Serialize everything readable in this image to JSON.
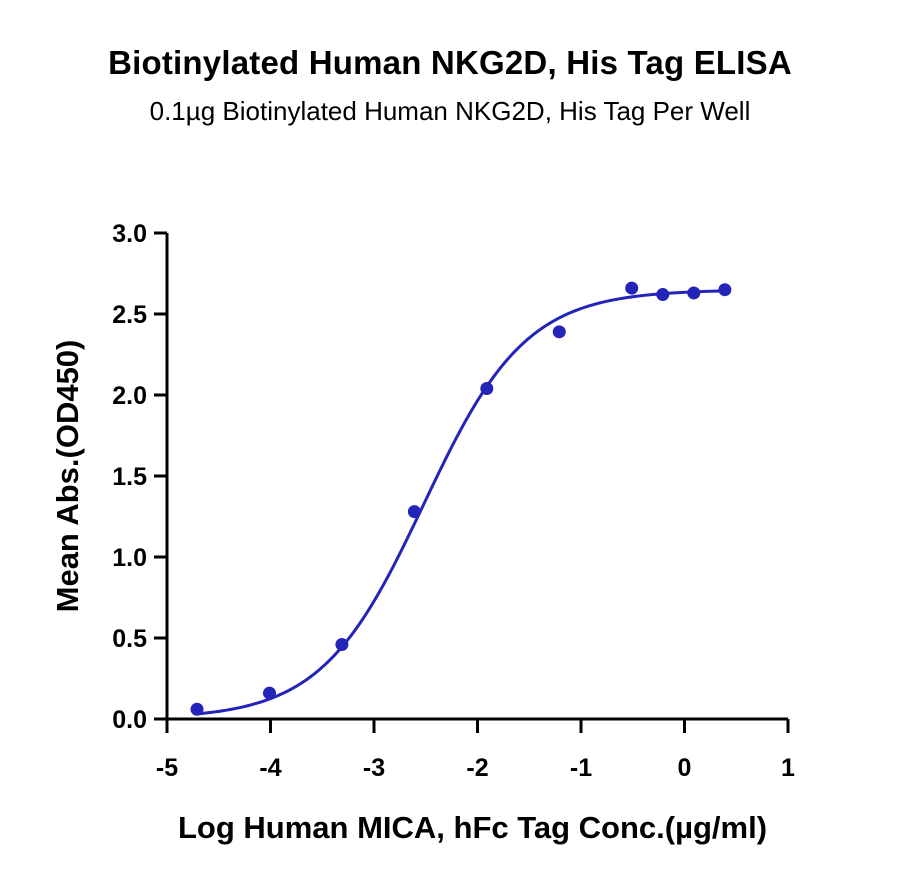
{
  "chart_data": {
    "type": "scatter",
    "title": "Biotinylated Human NKG2D, His Tag ELISA",
    "subtitle": "0.1µg Biotinylated Human NKG2D, His Tag Per Well",
    "xlabel": "Log Human MICA, hFc Tag Conc.(µg/ml)",
    "ylabel": "Mean Abs.(OD450)",
    "xlim": [
      -5,
      1
    ],
    "ylim": [
      0,
      3.0
    ],
    "x_ticks": [
      -5,
      -4,
      -3,
      -2,
      -1,
      0,
      1
    ],
    "x_tick_labels": [
      "-5",
      "-4",
      "-3",
      "-2",
      "-1",
      "0",
      "1"
    ],
    "y_ticks": [
      0,
      0.5,
      1.0,
      1.5,
      2.0,
      2.5,
      3.0
    ],
    "y_tick_labels": [
      "0.0",
      "0.5",
      "1.0",
      "1.5",
      "2.0",
      "2.5",
      "3.0"
    ],
    "grid": false,
    "series": [
      {
        "points": [
          {
            "x": -4.71,
            "y": 0.06
          },
          {
            "x": -4.01,
            "y": 0.16
          },
          {
            "x": -3.31,
            "y": 0.46
          },
          {
            "x": -2.61,
            "y": 1.28
          },
          {
            "x": -1.91,
            "y": 2.04
          },
          {
            "x": -1.21,
            "y": 2.39
          },
          {
            "x": -0.51,
            "y": 2.66
          },
          {
            "x": -0.21,
            "y": 2.62
          },
          {
            "x": 0.09,
            "y": 2.63
          },
          {
            "x": 0.39,
            "y": 2.65
          }
        ],
        "fit": {
          "model": "four-parameter logistic",
          "bottom": 0.0,
          "top": 2.65,
          "log_ec50": -2.52,
          "hill_slope": 0.88,
          "x_range": [
            -4.71,
            0.39
          ]
        },
        "color": "#2424b8"
      }
    ]
  }
}
